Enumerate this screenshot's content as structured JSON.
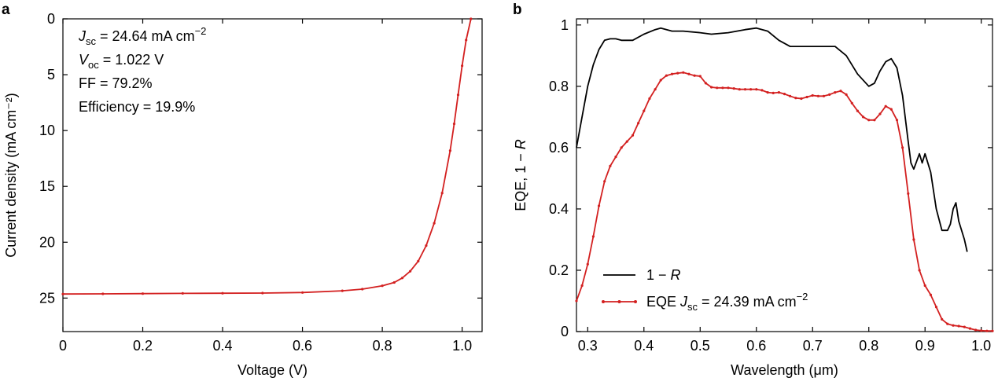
{
  "panel_labels": [
    "a",
    "b"
  ],
  "colors": {
    "red": "#d32020",
    "black": "#000000"
  },
  "chart_data": [
    {
      "type": "line",
      "panel": "a",
      "xlabel": "Voltage (V)",
      "ylabel": "Current density (mA cm⁻²)",
      "xlim": [
        0,
        1.05
      ],
      "ylim": [
        28,
        0
      ],
      "y_inverted": true,
      "grid": false,
      "xticks": [
        "0",
        "0.2",
        "0.4",
        "0.6",
        "0.8",
        "1.0"
      ],
      "xtick_values": [
        0,
        0.2,
        0.4,
        0.6,
        0.8,
        1.0
      ],
      "yticks": [
        "0",
        "5",
        "10",
        "15",
        "20",
        "25"
      ],
      "ytick_values": [
        0,
        5,
        10,
        15,
        20,
        25
      ],
      "annotations": [
        {
          "sym": "J",
          "sub": "sc",
          "text": " = 24.64 mA cm",
          "sup": "−2"
        },
        {
          "sym": "V",
          "sub": "oc",
          "text": " = 1.022 V",
          "sup": ""
        },
        {
          "sym": "",
          "sub": "",
          "text": "FF = 79.2%",
          "sup": ""
        },
        {
          "sym": "",
          "sub": "",
          "text": "Efficiency = 19.9%",
          "sup": ""
        }
      ],
      "series": [
        {
          "color": "#d32020",
          "x": [
            0,
            0.1,
            0.2,
            0.3,
            0.4,
            0.5,
            0.6,
            0.7,
            0.75,
            0.8,
            0.83,
            0.85,
            0.87,
            0.89,
            0.91,
            0.93,
            0.95,
            0.97,
            0.98,
            0.99,
            1.0,
            1.01,
            1.022
          ],
          "y": [
            24.64,
            24.62,
            24.6,
            24.58,
            24.57,
            24.55,
            24.5,
            24.35,
            24.2,
            23.9,
            23.6,
            23.2,
            22.6,
            21.7,
            20.3,
            18.3,
            15.6,
            11.8,
            9.4,
            6.8,
            4.2,
            1.9,
            0
          ]
        }
      ]
    },
    {
      "type": "line",
      "panel": "b",
      "xlabel": "Wavelength (μm)",
      "ylabel": "EQE, 1 − R",
      "xlim": [
        0.28,
        1.02
      ],
      "ylim": [
        0,
        1.02
      ],
      "grid": false,
      "legend_position": "bottom-left",
      "xticks": [
        "0.3",
        "0.4",
        "0.5",
        "0.6",
        "0.7",
        "0.8",
        "0.9",
        "1.0"
      ],
      "xtick_values": [
        0.3,
        0.4,
        0.5,
        0.6,
        0.7,
        0.8,
        0.9,
        1.0
      ],
      "yticks": [
        "0",
        "0.2",
        "0.4",
        "0.6",
        "0.8",
        "1"
      ],
      "ytick_values": [
        0,
        0.2,
        0.4,
        0.6,
        0.8,
        1.0
      ],
      "series": [
        {
          "legend": {
            "prefix": "1 − ",
            "italic": "R",
            "rest": "",
            "sub": "",
            "tail": "",
            "sup": ""
          },
          "color": "#000000",
          "markers": false,
          "x": [
            0.28,
            0.29,
            0.3,
            0.31,
            0.32,
            0.33,
            0.34,
            0.35,
            0.36,
            0.38,
            0.4,
            0.42,
            0.43,
            0.45,
            0.47,
            0.5,
            0.52,
            0.55,
            0.58,
            0.6,
            0.62,
            0.64,
            0.66,
            0.68,
            0.7,
            0.72,
            0.74,
            0.76,
            0.78,
            0.8,
            0.81,
            0.82,
            0.83,
            0.84,
            0.85,
            0.86,
            0.87,
            0.875,
            0.88,
            0.89,
            0.895,
            0.9,
            0.91,
            0.92,
            0.93,
            0.94,
            0.945,
            0.95,
            0.955,
            0.96,
            0.97,
            0.975
          ],
          "y": [
            0.6,
            0.7,
            0.8,
            0.87,
            0.92,
            0.95,
            0.955,
            0.955,
            0.95,
            0.95,
            0.97,
            0.985,
            0.99,
            0.98,
            0.98,
            0.975,
            0.97,
            0.975,
            0.985,
            0.99,
            0.98,
            0.95,
            0.93,
            0.93,
            0.93,
            0.93,
            0.93,
            0.9,
            0.84,
            0.8,
            0.81,
            0.85,
            0.88,
            0.89,
            0.86,
            0.77,
            0.62,
            0.55,
            0.53,
            0.58,
            0.55,
            0.58,
            0.52,
            0.4,
            0.33,
            0.33,
            0.35,
            0.4,
            0.42,
            0.36,
            0.3,
            0.26
          ]
        },
        {
          "legend": {
            "prefix": "EQE ",
            "italic": "J",
            "rest": "",
            "sub": "sc",
            "tail": " = 24.39 mA cm",
            "sup": "−2"
          },
          "color": "#d32020",
          "markers": true,
          "x": [
            0.28,
            0.29,
            0.3,
            0.31,
            0.32,
            0.33,
            0.34,
            0.35,
            0.36,
            0.37,
            0.38,
            0.39,
            0.4,
            0.41,
            0.42,
            0.43,
            0.44,
            0.45,
            0.46,
            0.47,
            0.48,
            0.49,
            0.5,
            0.51,
            0.52,
            0.53,
            0.54,
            0.55,
            0.56,
            0.57,
            0.58,
            0.59,
            0.6,
            0.61,
            0.62,
            0.63,
            0.64,
            0.65,
            0.66,
            0.67,
            0.68,
            0.69,
            0.7,
            0.71,
            0.72,
            0.73,
            0.74,
            0.75,
            0.76,
            0.77,
            0.78,
            0.79,
            0.8,
            0.81,
            0.82,
            0.83,
            0.84,
            0.85,
            0.86,
            0.87,
            0.88,
            0.89,
            0.9,
            0.91,
            0.92,
            0.93,
            0.94,
            0.95,
            0.96,
            0.97,
            0.98,
            0.99,
            1.0,
            1.01,
            1.02
          ],
          "y": [
            0.1,
            0.15,
            0.22,
            0.31,
            0.41,
            0.49,
            0.54,
            0.57,
            0.6,
            0.62,
            0.64,
            0.68,
            0.72,
            0.76,
            0.79,
            0.82,
            0.835,
            0.84,
            0.843,
            0.845,
            0.84,
            0.835,
            0.833,
            0.81,
            0.797,
            0.795,
            0.795,
            0.795,
            0.793,
            0.79,
            0.79,
            0.79,
            0.79,
            0.787,
            0.78,
            0.778,
            0.78,
            0.775,
            0.768,
            0.762,
            0.76,
            0.765,
            0.77,
            0.768,
            0.768,
            0.773,
            0.78,
            0.785,
            0.773,
            0.745,
            0.72,
            0.7,
            0.69,
            0.69,
            0.71,
            0.735,
            0.725,
            0.69,
            0.6,
            0.45,
            0.3,
            0.2,
            0.15,
            0.12,
            0.08,
            0.04,
            0.025,
            0.02,
            0.018,
            0.015,
            0.01,
            0.005,
            0.003,
            0.002,
            0.002
          ]
        }
      ]
    }
  ]
}
